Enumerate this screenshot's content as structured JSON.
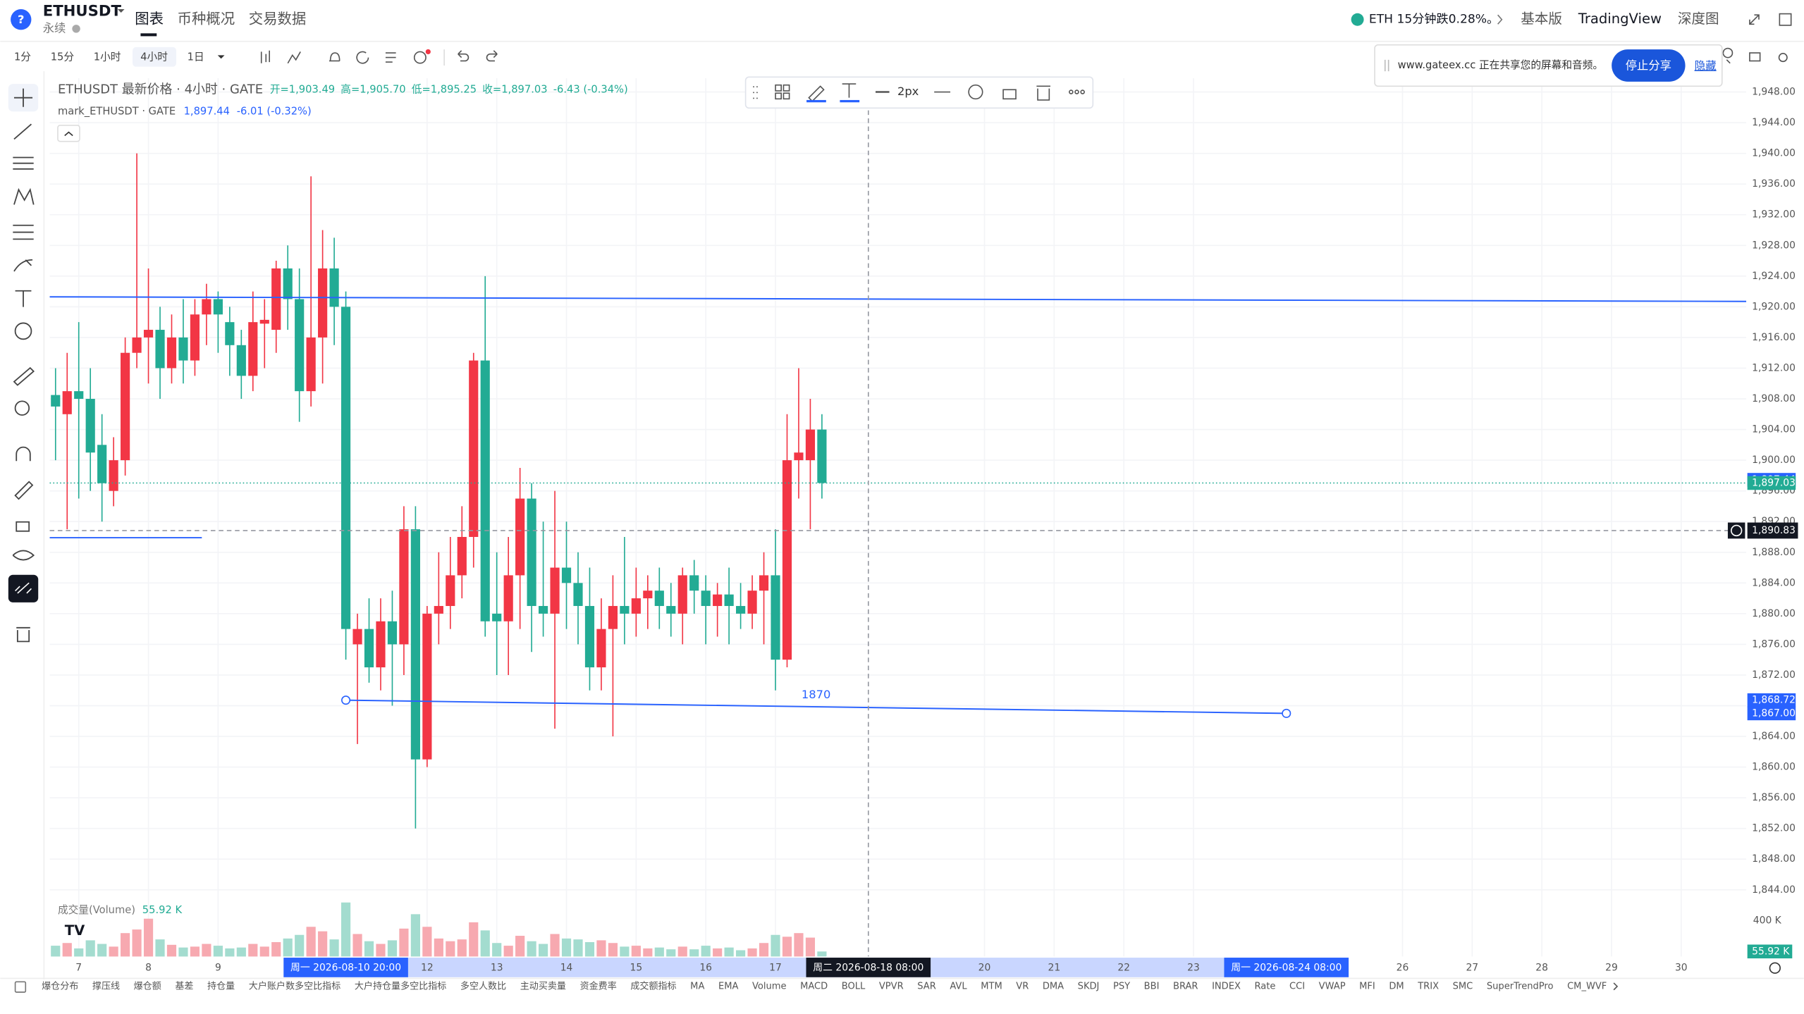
{
  "header": {
    "symbol": "ETHUSDT",
    "subtitle": "永续",
    "tabs": [
      "图表",
      "币种概况",
      "交易数据"
    ],
    "ticker": "ETH 15分钟跌0.28%。",
    "views": [
      "基本版",
      "TradingView",
      "深度图"
    ]
  },
  "toolbar": {
    "intervals": [
      "1分",
      "15分",
      "1小时",
      "4小时",
      "1日"
    ]
  },
  "share_banner": {
    "text": "www.gateex.cc 正在共享您的屏幕和音频。",
    "button": "停止分享",
    "link": "隐藏"
  },
  "draw_toolbar": {
    "width_label": "2px"
  },
  "indicators": [
    "爆仓分布",
    "撑压线",
    "爆仓额",
    "基差",
    "持仓量",
    "大户账户数多空比指标",
    "大户持仓量多空比指标",
    "多空人数比",
    "主动买卖量",
    "资金费率",
    "成交额指标",
    "MA",
    "EMA",
    "Volume",
    "MACD",
    "BOLL",
    "VPVR",
    "SAR",
    "AVL",
    "MTM",
    "VR",
    "DMA",
    "SKDJ",
    "PSY",
    "BBI",
    "BRAR",
    "INDEX",
    "Rate",
    "CCI",
    "VWAP",
    "MFI",
    "DM",
    "TRIX",
    "SMC",
    "SuperTrendPro",
    "CM_WVF"
  ],
  "chart_data": {
    "type": "candlestick",
    "legend": {
      "title": "ETHUSDT 最新价格 · 4小时 · GATE",
      "ohlc": [
        "开=1,903.49",
        "高=1,905.70",
        "低=1,895.25",
        "收=1,897.03",
        "-6.43 (-0.34%)"
      ],
      "mark_title": "mark_ETHUSDT · GATE",
      "mark": [
        "1,897.44",
        "-6.01 (-0.32%)"
      ]
    },
    "up_color": "#f23645",
    "down_color": "#22ab94",
    "open": [
      1908.5,
      1906,
      1909,
      1908,
      1902,
      1896,
      1900,
      1914,
      1916,
      1917,
      1912,
      1916,
      1913,
      1919,
      1921,
      1918,
      1915,
      1911,
      1917.8,
      1917,
      1925,
      1921,
      1909,
      1916,
      1925,
      1920,
      1876,
      1878,
      1873,
      1879,
      1876,
      1891,
      1861,
      1880,
      1881,
      1885,
      1890,
      1913,
      1880,
      1879,
      1885,
      1895,
      1881,
      1880,
      1886,
      1884,
      1881,
      1873,
      1878,
      1881,
      1880,
      1882,
      1883,
      1881,
      1880,
      1885,
      1883,
      1881,
      1882.5,
      1881,
      1880,
      1883,
      1885,
      1874,
      1900,
      1900,
      1904
    ],
    "high": [
      1912,
      1914,
      1918,
      1912,
      1906,
      1903,
      1916,
      1940,
      1925,
      1920,
      1919,
      1921,
      1921,
      1923,
      1922,
      1920,
      1917,
      1922,
      1921,
      1926,
      1928,
      1925,
      1937,
      1930,
      1929,
      1922,
      1880,
      1882,
      1882,
      1883,
      1894,
      1894,
      1881,
      1888,
      1890,
      1894,
      1914,
      1924,
      1888,
      1890,
      1899,
      1897,
      1892,
      1896,
      1892,
      1888,
      1886,
      1882,
      1885,
      1890,
      1886,
      1885,
      1886,
      1884,
      1886,
      1887,
      1885,
      1884,
      1886,
      1884,
      1885,
      1888,
      1891,
      1906,
      1912,
      1908,
      1906
    ],
    "low": [
      1900,
      1891,
      1895,
      1896,
      1892,
      1894,
      1898,
      1912,
      1910,
      1908,
      1910,
      1910,
      1911,
      1915,
      1914,
      1911,
      1908,
      1909,
      1912,
      1914,
      1917,
      1905,
      1907,
      1910,
      1915,
      1874,
      1863,
      1871,
      1870,
      1868,
      1872,
      1852,
      1860,
      1876,
      1878,
      1882,
      1886,
      1877,
      1872,
      1872,
      1878,
      1875,
      1877,
      1865,
      1878,
      1876,
      1870,
      1870,
      1864,
      1876,
      1877,
      1878,
      1878,
      1877,
      1876,
      1880,
      1876,
      1877,
      1876,
      1878,
      1878,
      1876,
      1870,
      1873,
      1895,
      1891,
      1895
    ],
    "close": [
      1907,
      1909,
      1908,
      1901,
      1897,
      1900,
      1914,
      1916,
      1917,
      1912,
      1916,
      1913,
      1919,
      1921,
      1919,
      1915,
      1911,
      1918,
      1918.3,
      1925,
      1921,
      1909,
      1916,
      1925,
      1920,
      1878,
      1878,
      1873,
      1879,
      1876,
      1891,
      1861,
      1880,
      1881,
      1885,
      1890,
      1913,
      1879,
      1879,
      1885,
      1895,
      1881,
      1880,
      1886,
      1884,
      1881,
      1873,
      1878,
      1881,
      1880,
      1882,
      1883,
      1881,
      1880,
      1885,
      1883,
      1881,
      1882.5,
      1881,
      1880,
      1883,
      1885,
      1874,
      1900,
      1901,
      1904,
      1897.03
    ],
    "xlim": [
      -0.5,
      145.6
    ],
    "xticks": [
      {
        "value": 2,
        "label": "7"
      },
      {
        "value": 8,
        "label": "8"
      },
      {
        "value": 14,
        "label": "9"
      },
      {
        "value": 32,
        "label": "12"
      },
      {
        "value": 38,
        "label": "13"
      },
      {
        "value": 44,
        "label": "14"
      },
      {
        "value": 50,
        "label": "15"
      },
      {
        "value": 56,
        "label": "16"
      },
      {
        "value": 62,
        "label": "17"
      },
      {
        "value": 80,
        "label": "20"
      },
      {
        "value": 86,
        "label": "21"
      },
      {
        "value": 92,
        "label": "22"
      },
      {
        "value": 98,
        "label": "23"
      },
      {
        "value": 116,
        "label": "26"
      },
      {
        "value": 122,
        "label": "27"
      },
      {
        "value": 128,
        "label": "28"
      },
      {
        "value": 134,
        "label": "29"
      },
      {
        "value": 140,
        "label": "30"
      }
    ],
    "ylim": [
      1842.8,
      1949.8
    ],
    "yticks": [
      {
        "value": 1844,
        "label": "1,844.00"
      },
      {
        "value": 1848,
        "label": "1,848.00"
      },
      {
        "value": 1852,
        "label": "1,852.00"
      },
      {
        "value": 1856,
        "label": "1,856.00"
      },
      {
        "value": 1860,
        "label": "1,860.00"
      },
      {
        "value": 1864,
        "label": "1,864.00"
      },
      {
        "value": 1868,
        "label": "1,868.00"
      },
      {
        "value": 1872,
        "label": "1,872.00"
      },
      {
        "value": 1876,
        "label": "1,876.00"
      },
      {
        "value": 1880,
        "label": "1,880.00"
      },
      {
        "value": 1884,
        "label": "1,884.00"
      },
      {
        "value": 1888,
        "label": "1,888.00"
      },
      {
        "value": 1892,
        "label": "1,892.00"
      },
      {
        "value": 1896,
        "label": "1,896.00"
      },
      {
        "value": 1900,
        "label": "1,900.00"
      },
      {
        "value": 1904,
        "label": "1,904.00"
      },
      {
        "value": 1908,
        "label": "1,908.00"
      },
      {
        "value": 1912,
        "label": "1,912.00"
      },
      {
        "value": 1916,
        "label": "1,916.00"
      },
      {
        "value": 1920,
        "label": "1,920.00"
      },
      {
        "value": 1924,
        "label": "1,924.00"
      },
      {
        "value": 1928,
        "label": "1,928.00"
      },
      {
        "value": 1932,
        "label": "1,932.00"
      },
      {
        "value": 1936,
        "label": "1,936.00"
      },
      {
        "value": 1940,
        "label": "1,940.00"
      },
      {
        "value": 1944,
        "label": "1,944.00"
      },
      {
        "value": 1948,
        "label": "1,948.00"
      }
    ],
    "price_tags": [
      {
        "value": 1897.44,
        "label": "1,897.44",
        "color": "#2962ff"
      },
      {
        "value": 1897.03,
        "label": "1,897.03",
        "color": "#22ab94",
        "guide": true
      },
      {
        "value": 1868.72,
        "label": "1,868.72",
        "color": "#2962ff"
      },
      {
        "value": 1867.0,
        "label": "1,867.00",
        "color": "#2962ff"
      }
    ],
    "crosshair": {
      "x": 70,
      "y": 1890.83,
      "label": "1,890.83",
      "time_label": "周二 2026-08-18   08:00"
    },
    "time_tags": [
      {
        "x": 25,
        "label": "周一 2026-08-10   20:00"
      },
      {
        "x": 106,
        "label": "周一 2026-08-24   08:00"
      }
    ],
    "drawings": [
      {
        "color": "#2962ff",
        "points": [
          [
            -0.5,
            1921.3
          ],
          [
            145.6,
            1920.7
          ]
        ]
      },
      {
        "color": "#2962ff",
        "points": [
          [
            -0.5,
            1889.9
          ],
          [
            12.6,
            1889.9
          ]
        ]
      },
      {
        "color": "#2962ff",
        "points": [
          [
            25,
            1868.72
          ],
          [
            106,
            1867.0
          ]
        ],
        "handles": true,
        "label": "1870"
      }
    ],
    "volume": {
      "title": "成交量(Volume)",
      "last": {
        "value": 55.92,
        "label": "55.92 K"
      },
      "ylim": [
        0,
        600
      ],
      "yticks": [
        {
          "value": 400,
          "label": "400 K"
        }
      ],
      "values": [
        120,
        150,
        90,
        180,
        140,
        110,
        260,
        300,
        420,
        190,
        130,
        100,
        110,
        140,
        120,
        90,
        100,
        140,
        110,
        160,
        200,
        240,
        330,
        280,
        190,
        600,
        250,
        170,
        140,
        180,
        310,
        470,
        330,
        200,
        170,
        190,
        380,
        290,
        150,
        120,
        230,
        170,
        140,
        250,
        200,
        190,
        160,
        180,
        150,
        110,
        120,
        90,
        100,
        80,
        110,
        80,
        120,
        90,
        100,
        70,
        90,
        150,
        240,
        220,
        260,
        210,
        55.92
      ]
    }
  }
}
